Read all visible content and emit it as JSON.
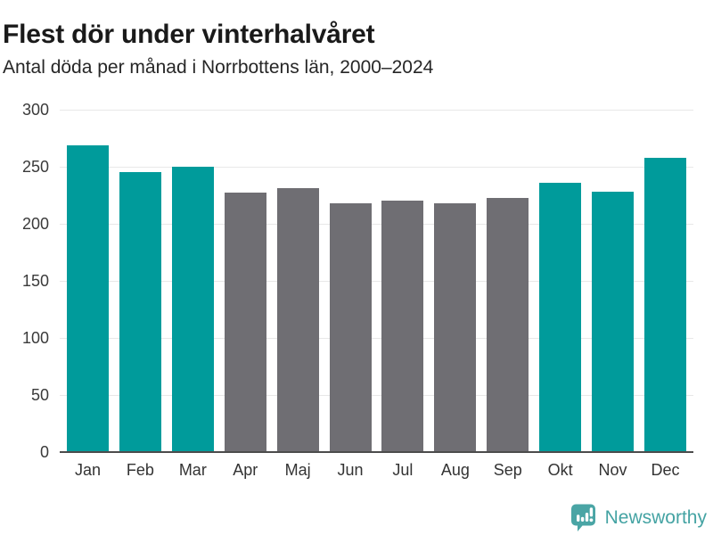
{
  "header": {
    "title": "Flest dör under vinterhalvåret",
    "subtitle": "Antal döda per månad i Norrbottens län, 2000–2024"
  },
  "branding": {
    "name": "Newsworthy",
    "icon": "speech-bubble-bar-chart-icon"
  },
  "colors": {
    "winter_bar": "#009b9b",
    "summer_bar": "#6f6e73",
    "gridline": "#e8e8e8",
    "axis_line": "#4c4c4c",
    "brand_teal": "#44a3a3"
  },
  "chart_data": {
    "type": "bar",
    "title": "Flest dör under vinterhalvåret",
    "subtitle": "Antal döda per månad i Norrbottens län, 2000–2024",
    "categories": [
      "Jan",
      "Feb",
      "Mar",
      "Apr",
      "Maj",
      "Jun",
      "Jul",
      "Aug",
      "Sep",
      "Okt",
      "Nov",
      "Dec"
    ],
    "values": [
      269,
      245,
      250,
      227,
      231,
      218,
      220,
      218,
      223,
      236,
      228,
      258
    ],
    "highlighted_winter_months": [
      true,
      true,
      true,
      false,
      false,
      false,
      false,
      false,
      false,
      true,
      true,
      true
    ],
    "xlabel": "",
    "ylabel": "",
    "ylim": [
      0,
      300
    ],
    "yticks": [
      0,
      50,
      100,
      150,
      200,
      250,
      300
    ],
    "grid": "horizontal",
    "legend": "none"
  }
}
